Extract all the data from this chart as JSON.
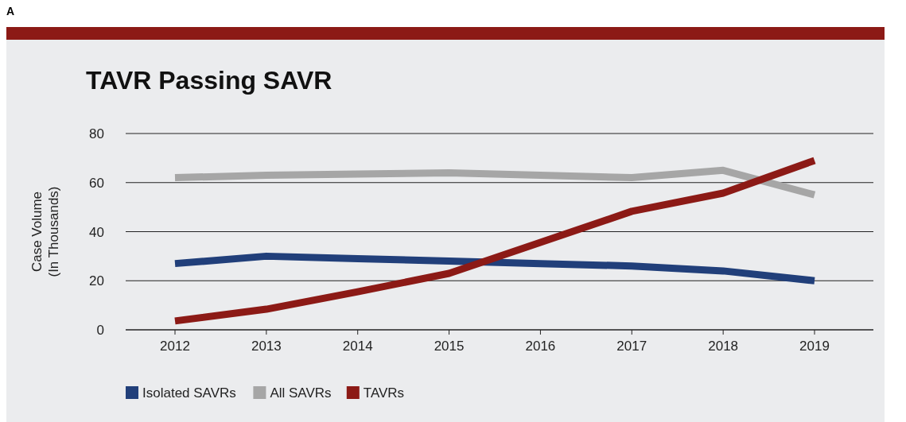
{
  "chart_data": {
    "type": "line",
    "title": "TAVR Passing SAVR",
    "ylabel": "Case Volume\n(In Thousands)",
    "annotations": [
      "A"
    ],
    "categories": [
      "2012",
      "2013",
      "2014",
      "2015",
      "2016",
      "2017",
      "2018",
      "2019"
    ],
    "series": [
      {
        "name": "Isolated SAVRs",
        "color": "#213f7a",
        "values": [
          27,
          30,
          29,
          28,
          27,
          26,
          24,
          20
        ]
      },
      {
        "name": "All SAVRs",
        "color": "#a6a6a6",
        "values": [
          62,
          63,
          63.5,
          64,
          63,
          62,
          65,
          55
        ]
      },
      {
        "name": "TAVRs",
        "color": "#8c1a16",
        "values": [
          3.6,
          8.4,
          15.5,
          23,
          35.6,
          48.3,
          55.7,
          69
        ]
      }
    ],
    "ylim": [
      0,
      80
    ],
    "yticks": [
      0,
      20,
      40,
      60,
      80
    ],
    "grid": "y",
    "legend": "bottom left",
    "marker": "none",
    "line_style": "solid"
  }
}
